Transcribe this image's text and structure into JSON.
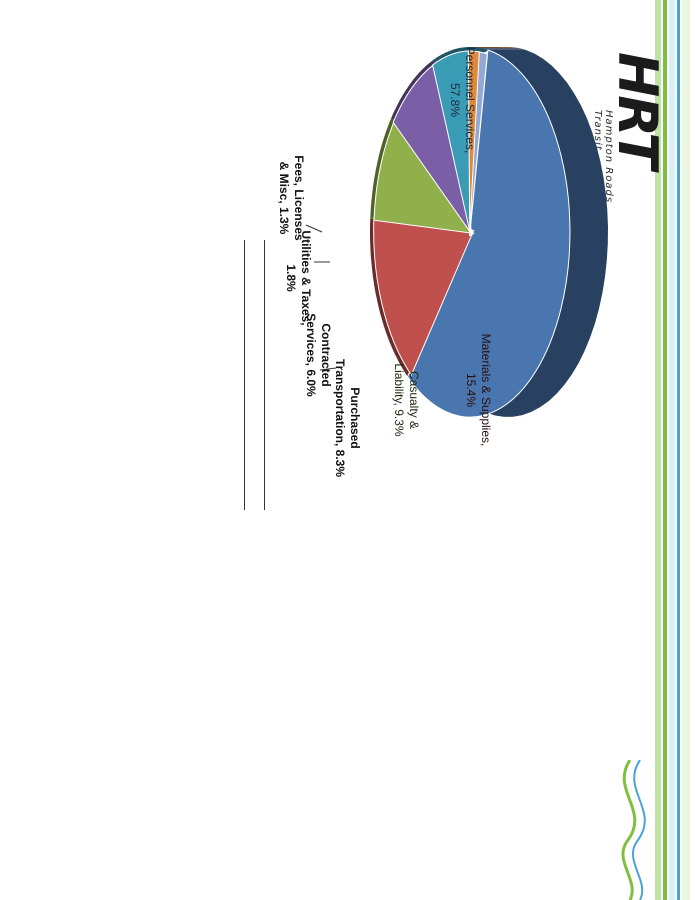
{
  "chart_data": {
    "type": "pie",
    "title": "",
    "slices": [
      {
        "label": "Personnel Services,",
        "value_label": "57.8%",
        "value": 57.8,
        "color": "#4a76b0"
      },
      {
        "label": "Materials & Supplies,",
        "value_label": "15.4%",
        "value": 15.4,
        "color": "#c0504d"
      },
      {
        "label": "Casualty &",
        "label2": "Liability, 9.3%",
        "value": 9.3,
        "color": "#8fb04a"
      },
      {
        "label": "Purchased",
        "label2": "Transportation, 8.3%",
        "value": 8.3,
        "color": "#7a5ea6"
      },
      {
        "label": "Contracted",
        "label2": "Services, 6.0%",
        "value": 6.0,
        "color": "#3a9bb5"
      },
      {
        "label": "Utilities & Taxes,",
        "label2": "1.8%",
        "value": 1.8,
        "color": "#e0893a"
      },
      {
        "label": "Fees, Licenses",
        "label2": "& Misc, 1.3%",
        "value": 1.3,
        "color": "#93a9d4"
      }
    ]
  },
  "brand": {
    "logo_text": "HRT",
    "logo_subtext": "Hampton Roads Transit",
    "accent_green": "#7fbf3f",
    "accent_blue": "#4aa3d8"
  }
}
